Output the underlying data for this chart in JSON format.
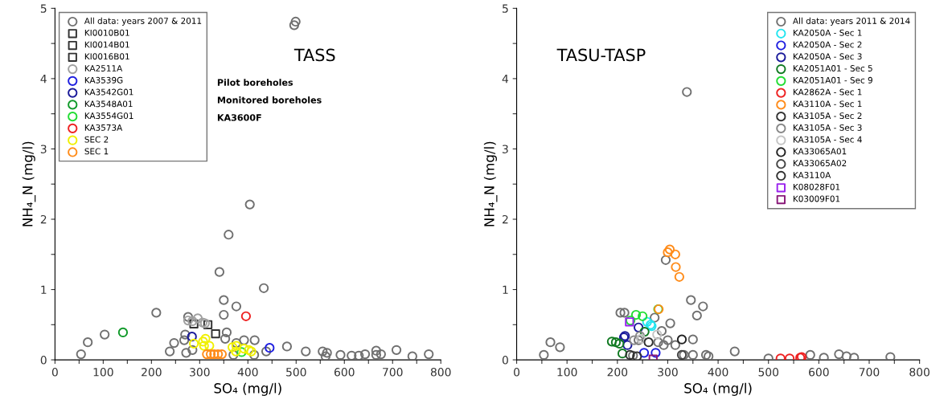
{
  "chart_data": [
    {
      "type": "scatter",
      "xlabel": "SO₄ (mg/l)",
      "ylabel": "NH₄_N (mg/l)",
      "annotations": [
        "TASS",
        "Pilot boreholes",
        "Monitored boreholes",
        "KA3600F"
      ],
      "legend": "top left",
      "grid": false,
      "marker": "circle",
      "xlim": [
        0,
        800
      ],
      "ylim": [
        0,
        5
      ],
      "xticks": [
        0,
        {
          "value": 50,
          "label": null
        },
        100,
        {
          "value": 150,
          "label": null
        },
        200,
        {
          "value": 250,
          "label": null
        },
        300,
        {
          "value": 350,
          "label": null
        },
        400,
        {
          "value": 450,
          "label": null
        },
        500,
        {
          "value": 550,
          "label": null
        },
        600,
        {
          "value": 650,
          "label": null
        },
        700,
        {
          "value": 750,
          "label": null
        },
        800
      ],
      "yticks": [
        0,
        {
          "value": 0.5,
          "label": null
        },
        1,
        {
          "value": 1.5,
          "label": null
        },
        2,
        {
          "value": 2.5,
          "label": null
        },
        3,
        {
          "value": 3.5,
          "label": null
        },
        4,
        {
          "value": 4.5,
          "label": null
        },
        5
      ],
      "series": [
        {
          "name": "All data: years 2007 & 2011",
          "color": "#707070",
          "x": [
            54,
            68,
            103,
            210,
            238,
            247,
            272,
            268,
            270,
            276,
            285,
            360,
            404,
            341,
            433,
            350,
            376,
            350,
            356,
            353,
            376,
            392,
            414,
            370,
            413,
            438,
            481,
            520,
            555,
            564,
            561,
            592,
            615,
            630,
            643,
            666,
            676,
            666,
            708,
            741,
            775,
            496,
            499
          ],
          "values": [
            0.08,
            0.25,
            0.36,
            0.67,
            0.12,
            0.24,
            0.1,
            0.28,
            0.36,
            0.61,
            0.14,
            1.78,
            2.21,
            1.25,
            1.02,
            0.85,
            0.76,
            0.64,
            0.39,
            0.3,
            0.24,
            0.28,
            0.28,
            0.07,
            0.07,
            0.12,
            0.19,
            0.12,
            0.12,
            0.1,
            0.05,
            0.07,
            0.06,
            0.06,
            0.08,
            0.13,
            0.08,
            0.07,
            0.14,
            0.05,
            0.08,
            4.76,
            4.81
          ]
        },
        {
          "name": "KI0010B01",
          "color": "#333333",
          "marker": "square",
          "x": [
            288
          ],
          "values": [
            0.51
          ]
        },
        {
          "name": "KI0014B01",
          "color": "#333333",
          "marker": "square",
          "x": [
            317
          ],
          "values": [
            0.5
          ]
        },
        {
          "name": "KI0016B01",
          "color": "#333333",
          "marker": "square",
          "x": [
            333
          ],
          "values": [
            0.37
          ]
        },
        {
          "name": "KA2511A",
          "color": "#a0a0a0",
          "x": [
            276,
            296,
            306,
            311,
            285
          ],
          "values": [
            0.56,
            0.59,
            0.53,
            0.52,
            0.55
          ]
        },
        {
          "name": "KA3539G",
          "color": "#1f1fe0",
          "x": [
            445
          ],
          "values": [
            0.17
          ]
        },
        {
          "name": "KA3542G01",
          "color": "#1a1a9a",
          "x": [
            284
          ],
          "values": [
            0.33
          ]
        },
        {
          "name": "KA3548A01",
          "color": "#119a2a",
          "x": [
            141
          ],
          "values": [
            0.39
          ]
        },
        {
          "name": "KA3554G01",
          "color": "#22dd33",
          "x": [
            387
          ],
          "values": [
            0.11
          ]
        },
        {
          "name": "KA3573A",
          "color": "#ee2222",
          "x": [
            396
          ],
          "values": [
            0.62
          ]
        },
        {
          "name": "SEC 2",
          "color": "#f0f000",
          "x": [
            288,
            307,
            312,
            309,
            320,
            368,
            376,
            375,
            392,
            402,
            407
          ],
          "values": [
            0.23,
            0.26,
            0.3,
            0.2,
            0.2,
            0.18,
            0.2,
            0.12,
            0.16,
            0.14,
            0.12
          ]
        },
        {
          "name": "SEC 1",
          "color": "#ff8c1a",
          "x": [
            315,
            323,
            330,
            338,
            346
          ],
          "values": [
            0.08,
            0.08,
            0.08,
            0.08,
            0.08
          ]
        }
      ]
    },
    {
      "type": "scatter",
      "xlabel": "SO₄ (mg/l)",
      "ylabel": "NH₄_N (mg/l)",
      "annotations": [
        "TASU-TASP"
      ],
      "legend": "top right",
      "grid": false,
      "marker": "circle",
      "xlim": [
        0,
        800
      ],
      "ylim": [
        0,
        5
      ],
      "xticks": [
        0,
        {
          "value": 50,
          "label": null
        },
        100,
        {
          "value": 150,
          "label": null
        },
        200,
        {
          "value": 250,
          "label": null
        },
        300,
        {
          "value": 350,
          "label": null
        },
        400,
        {
          "value": 450,
          "label": null
        },
        500,
        {
          "value": 550,
          "label": null
        },
        600,
        {
          "value": 650,
          "label": null
        },
        700,
        {
          "value": 750,
          "label": null
        },
        800
      ],
      "yticks": [
        0,
        {
          "value": 0.5,
          "label": null
        },
        1,
        {
          "value": 1.5,
          "label": null
        },
        2,
        {
          "value": 2.5,
          "label": null
        },
        3,
        {
          "value": 3.5,
          "label": null
        },
        4,
        {
          "value": 4.5,
          "label": null
        },
        5
      ],
      "series": [
        {
          "name": "All data: years 2011 & 2014",
          "color": "#707070",
          "x": [
            54,
            67,
            86,
            206,
            214,
            296,
            346,
            370,
            358,
            305,
            274,
            288,
            292,
            281,
            315,
            350,
            350,
            376,
            381,
            433,
            500,
            583,
            242,
            231,
            332,
            300,
            338,
            610,
            640,
            655,
            670,
            742
          ],
          "values": [
            0.07,
            0.25,
            0.18,
            0.67,
            0.67,
            1.42,
            0.85,
            0.76,
            0.63,
            0.52,
            0.6,
            0.41,
            0.21,
            0.25,
            0.21,
            0.29,
            0.07,
            0.07,
            0.05,
            0.12,
            0.02,
            0.07,
            0.28,
            0.06,
            0.07,
            0.28,
            3.81,
            0.03,
            0.08,
            0.05,
            0.03,
            0.04
          ]
        },
        {
          "name": "KA2050A - Sec 1",
          "color": "#22e5f0",
          "x": [
            266,
            268,
            259
          ],
          "values": [
            0.5,
            0.48,
            0.54
          ]
        },
        {
          "name": "KA2050A - Sec 2",
          "color": "#1f1fe0",
          "x": [
            253,
            276
          ],
          "values": [
            0.1,
            0.1
          ]
        },
        {
          "name": "KA2050A - Sec 3",
          "color": "#1a1a9a",
          "x": [
            213,
            215,
            220,
            242
          ],
          "values": [
            0.32,
            0.34,
            0.21,
            0.46
          ]
        },
        {
          "name": "KA2051A01 - Sec 5",
          "color": "#117a22",
          "x": [
            189,
            197,
            204,
            210,
            254
          ],
          "values": [
            0.26,
            0.25,
            0.23,
            0.09,
            0.4
          ]
        },
        {
          "name": "KA2051A01 - Sec 9",
          "color": "#22dd33",
          "x": [
            237,
            250,
            226,
            281
          ],
          "values": [
            0.64,
            0.62,
            0.56,
            0.72
          ]
        },
        {
          "name": "KA2862A - Sec 1",
          "color": "#ee2222",
          "x": [
            524,
            542,
            563,
            566
          ],
          "values": [
            0.02,
            0.02,
            0.03,
            0.04
          ]
        },
        {
          "name": "KA3110A - Sec 1",
          "color": "#ff8c1a",
          "x": [
            300,
            304,
            315,
            316,
            323,
            282
          ],
          "values": [
            1.53,
            1.57,
            1.5,
            1.32,
            1.18,
            0.72
          ]
        },
        {
          "name": "KA3105A - Sec 2",
          "color": "#333333",
          "x": [
            239,
            225
          ],
          "values": [
            0.05,
            0.07
          ]
        },
        {
          "name": "KA3105A - Sec 3",
          "color": "#888888",
          "x": [
            245,
            233
          ],
          "values": [
            0.34,
            0.28
          ]
        },
        {
          "name": "KA3105A - Sec 4",
          "color": "#c4c4c4",
          "x": [
            247,
            279
          ],
          "values": [
            0.3,
            0.36
          ]
        },
        {
          "name": "KA33065A01",
          "color": "#222222",
          "x": [
            328
          ],
          "values": [
            0.29
          ]
        },
        {
          "name": "KA33065A02",
          "color": "#444444",
          "x": [
            328
          ],
          "values": [
            0.07
          ]
        },
        {
          "name": "KA3110A",
          "color": "#303030",
          "x": [
            262
          ],
          "values": [
            0.25
          ]
        },
        {
          "name": "K08028F01",
          "color": "#9a22ee",
          "marker": "square",
          "x": [
            224
          ],
          "values": [
            0.54
          ]
        },
        {
          "name": "K03009F01",
          "color": "#8a1a7a",
          "marker": "square",
          "x": [
            271
          ],
          "values": [
            0.01
          ]
        }
      ]
    }
  ]
}
